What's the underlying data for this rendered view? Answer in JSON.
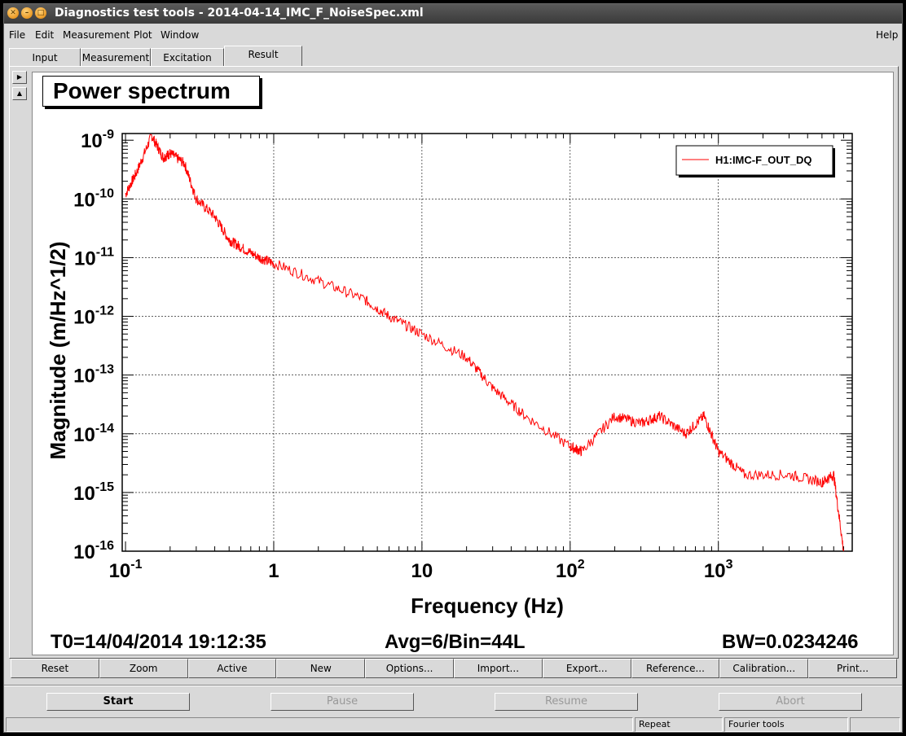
{
  "window": {
    "title": "Diagnostics test tools - 2014-04-14_IMC_F_NoiseSpec.xml",
    "title_buttons": [
      "close-icon",
      "minimize-icon",
      "maximize-icon"
    ]
  },
  "menu": {
    "file": "File",
    "edit": "Edit",
    "measurement": "Measurement",
    "plot": "Plot",
    "window": "Window",
    "help": "Help"
  },
  "tabs": [
    {
      "label": "Input"
    },
    {
      "label": "Measurement"
    },
    {
      "label": "Excitation"
    },
    {
      "label": "Result"
    }
  ],
  "active_tab": "Result",
  "side_buttons": [
    "play-right-icon",
    "triangle-up-icon"
  ],
  "plot": {
    "title": "Power spectrum",
    "t0": "T0=14/04/2014 19:12:35",
    "avg": "Avg=6/Bin=44L",
    "bw": "BW=0.0234246"
  },
  "chart_data": {
    "type": "line",
    "title": "Power spectrum",
    "xlabel": "Frequency (Hz)",
    "ylabel": "Magnitude (m/Hz^1/2)",
    "xscale": "log",
    "yscale": "log",
    "xlim": [
      0.095,
      8000
    ],
    "ylim": [
      1e-16,
      1.3e-09
    ],
    "grid": true,
    "legend_position": "top-right",
    "x_tick_labels": [
      "10",
      "1",
      "10",
      "10",
      "10"
    ],
    "x_tick_exponents": [
      "-1",
      "",
      "",
      "2",
      "3"
    ],
    "y_tick_labels": [
      "10",
      "10",
      "10",
      "10",
      "10",
      "10",
      "10",
      "10"
    ],
    "y_tick_exponents": [
      "-9",
      "-10",
      "-11",
      "-12",
      "-13",
      "-14",
      "-15",
      "-16"
    ],
    "series": [
      {
        "name": "H1:IMC-F_OUT_DQ",
        "color": "#ff0000",
        "points": [
          [
            0.1,
            1.2e-10
          ],
          [
            0.12,
            3e-10
          ],
          [
            0.15,
            1.2e-09
          ],
          [
            0.18,
            5e-10
          ],
          [
            0.2,
            6e-10
          ],
          [
            0.25,
            4e-10
          ],
          [
            0.3,
            1e-10
          ],
          [
            0.4,
            5e-11
          ],
          [
            0.5,
            2e-11
          ],
          [
            0.6,
            1.5e-11
          ],
          [
            0.8,
            1e-11
          ],
          [
            1,
            8e-12
          ],
          [
            2,
            4e-12
          ],
          [
            4,
            2e-12
          ],
          [
            6,
            1e-12
          ],
          [
            10,
            5e-13
          ],
          [
            20,
            2e-13
          ],
          [
            30,
            6e-14
          ],
          [
            50,
            2e-14
          ],
          [
            100,
            6e-15
          ],
          [
            120,
            5e-15
          ],
          [
            200,
            2e-14
          ],
          [
            300,
            1.5e-14
          ],
          [
            400,
            2e-14
          ],
          [
            600,
            1e-14
          ],
          [
            800,
            2e-14
          ],
          [
            1000,
            5e-15
          ],
          [
            1500,
            2e-15
          ],
          [
            3000,
            2e-15
          ],
          [
            5000,
            1.5e-15
          ],
          [
            6000,
            2e-15
          ],
          [
            7000,
            1e-16
          ]
        ]
      }
    ]
  },
  "buttons": [
    {
      "label": "Reset"
    },
    {
      "label": "Zoom"
    },
    {
      "label": "Active"
    },
    {
      "label": "New"
    },
    {
      "label": "Options..."
    },
    {
      "label": "Import..."
    },
    {
      "label": "Export..."
    },
    {
      "label": "Reference..."
    },
    {
      "label": "Calibration..."
    },
    {
      "label": "Print..."
    }
  ],
  "controls": {
    "start": "Start",
    "pause": "Pause",
    "resume": "Resume",
    "abort": "Abort"
  },
  "status": {
    "repeat": "Repeat",
    "fourier": "Fourier tools"
  }
}
